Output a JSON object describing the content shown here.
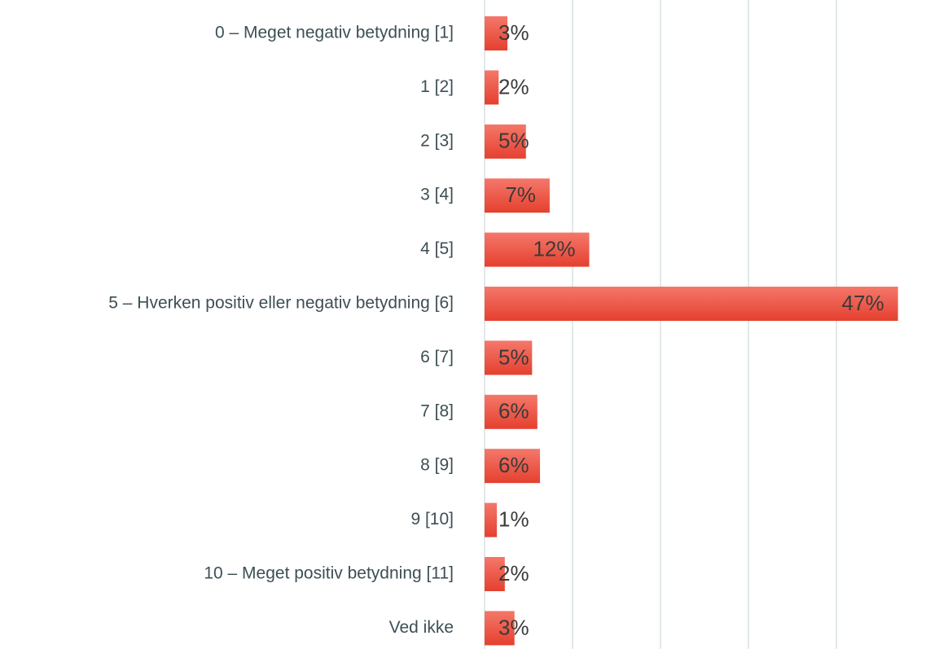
{
  "chart_data": {
    "type": "barh",
    "categories": [
      "0 – Meget negativ betydning [1]",
      "1 [2]",
      "2 [3]",
      "3 [4]",
      "4 [5]",
      "5 – Hverken positiv eller negativ betydning [6]",
      "6 [7]",
      "7 [8]",
      "8 [9]",
      "9 [10]",
      "10 – Meget positiv betydning [11]",
      "Ved ikke"
    ],
    "values": [
      2.6,
      1.6,
      4.7,
      7.4,
      11.9,
      47,
      5.4,
      6.0,
      6.3,
      1.4,
      2.3,
      3.4
    ],
    "value_labels": [
      "3%",
      "2%",
      "5%",
      "7%",
      "12%",
      "47%",
      "5%",
      "6%",
      "6%",
      "1%",
      "2%",
      "3%"
    ],
    "color": "#ec4f3e",
    "xlim": [
      0,
      50
    ],
    "xticks": [
      0,
      10,
      20,
      30,
      40
    ],
    "grid": true
  }
}
